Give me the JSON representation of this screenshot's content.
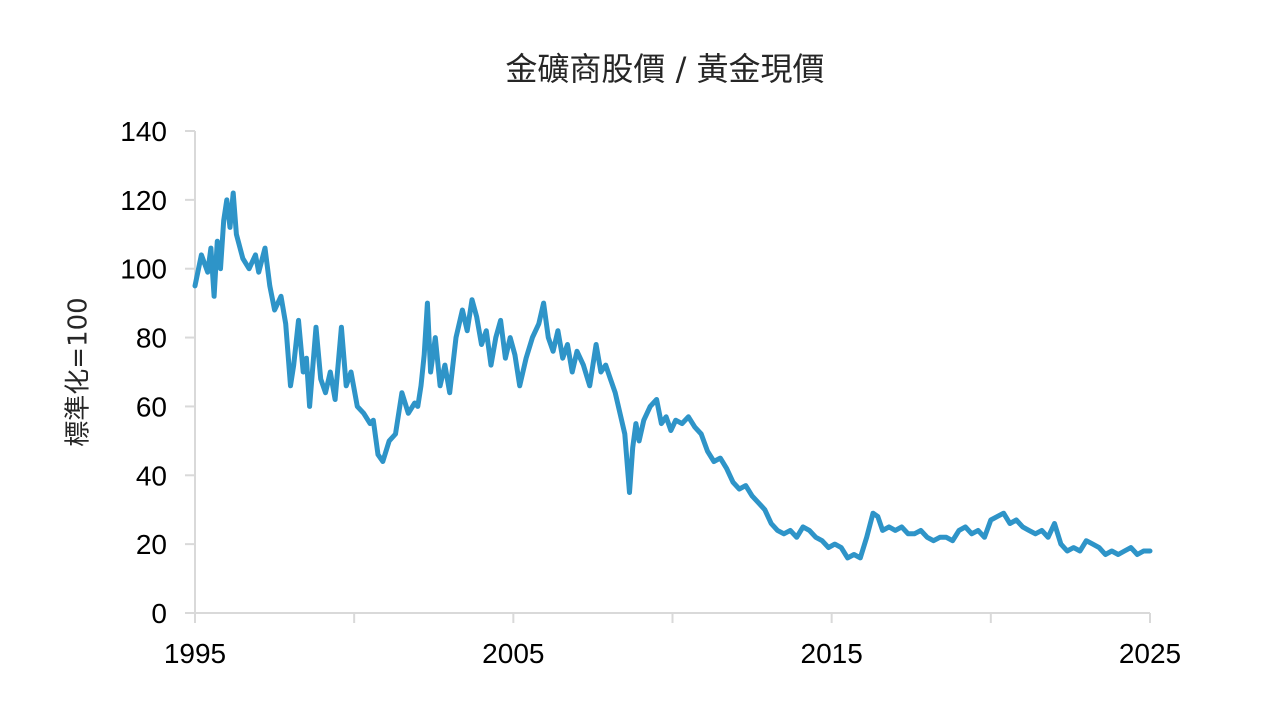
{
  "chart_data": {
    "type": "line",
    "title": "金礦商股價 / 黃金現價",
    "ylabel": "標準化=100",
    "xlabel": "",
    "xlim": [
      1995,
      2025
    ],
    "ylim": [
      0,
      140
    ],
    "y_ticks": [
      0,
      20,
      40,
      60,
      80,
      100,
      120,
      140
    ],
    "x_ticks": [
      1995,
      2000,
      2005,
      2010,
      2015,
      2020,
      2025
    ],
    "x_tick_labels": [
      "1995",
      "",
      "2005",
      "",
      "2015",
      "",
      "2025"
    ],
    "grid": false,
    "legend": "none",
    "color": "#2E94C8",
    "series": [
      {
        "x": [
          1995.0,
          1995.2,
          1995.4,
          1995.5,
          1995.6,
          1995.7,
          1995.8,
          1995.9,
          1996.0,
          1996.1,
          1996.2,
          1996.3,
          1996.5,
          1996.7,
          1996.9,
          1997.0,
          1997.2,
          1997.35,
          1997.5,
          1997.7,
          1997.85,
          1998.0,
          1998.1,
          1998.25,
          1998.4,
          1998.5,
          1998.6,
          1998.8,
          1998.95,
          1999.1,
          1999.25,
          1999.4,
          1999.6,
          1999.75,
          1999.9,
          2000.1,
          2000.3,
          2000.5,
          2000.6,
          2000.75,
          2000.9,
          2001.1,
          2001.3,
          2001.5,
          2001.7,
          2001.9,
          2002.0,
          2002.1,
          2002.2,
          2002.3,
          2002.4,
          2002.55,
          2002.7,
          2002.85,
          2003.0,
          2003.2,
          2003.4,
          2003.55,
          2003.7,
          2003.85,
          2004.0,
          2004.15,
          2004.3,
          2004.45,
          2004.6,
          2004.75,
          2004.9,
          2005.05,
          2005.2,
          2005.4,
          2005.6,
          2005.8,
          2005.95,
          2006.1,
          2006.25,
          2006.4,
          2006.55,
          2006.7,
          2006.85,
          2007.0,
          2007.2,
          2007.4,
          2007.6,
          2007.75,
          2007.9,
          2008.05,
          2008.2,
          2008.35,
          2008.5,
          2008.65,
          2008.75,
          2008.85,
          2008.95,
          2009.1,
          2009.3,
          2009.5,
          2009.65,
          2009.8,
          2009.95,
          2010.1,
          2010.3,
          2010.5,
          2010.7,
          2010.9,
          2011.1,
          2011.3,
          2011.5,
          2011.7,
          2011.9,
          2012.1,
          2012.3,
          2012.5,
          2012.7,
          2012.9,
          2013.1,
          2013.3,
          2013.5,
          2013.7,
          2013.9,
          2014.1,
          2014.3,
          2014.5,
          2014.7,
          2014.9,
          2015.1,
          2015.3,
          2015.5,
          2015.7,
          2015.9,
          2016.1,
          2016.3,
          2016.45,
          2016.6,
          2016.8,
          2017.0,
          2017.2,
          2017.4,
          2017.6,
          2017.8,
          2018.0,
          2018.2,
          2018.4,
          2018.6,
          2018.8,
          2019.0,
          2019.2,
          2019.4,
          2019.6,
          2019.8,
          2020.0,
          2020.2,
          2020.4,
          2020.6,
          2020.8,
          2021.0,
          2021.2,
          2021.4,
          2021.6,
          2021.8,
          2022.0,
          2022.2,
          2022.4,
          2022.6,
          2022.8,
          2023.0,
          2023.2,
          2023.4,
          2023.6,
          2023.8,
          2024.0,
          2024.2,
          2024.4,
          2024.6,
          2024.8,
          2025.0
        ],
        "y": [
          95,
          104,
          99,
          106,
          92,
          108,
          100,
          114,
          120,
          112,
          122,
          110,
          103,
          100,
          104,
          99,
          106,
          95,
          88,
          92,
          84,
          66,
          72,
          85,
          70,
          74,
          60,
          83,
          68,
          64,
          70,
          62,
          83,
          66,
          70,
          60,
          58,
          55,
          56,
          46,
          44,
          50,
          52,
          64,
          58,
          61,
          60,
          66,
          75,
          90,
          70,
          80,
          66,
          72,
          64,
          80,
          88,
          82,
          91,
          86,
          78,
          82,
          72,
          80,
          85,
          74,
          80,
          75,
          66,
          74,
          80,
          84,
          90,
          80,
          76,
          82,
          74,
          78,
          70,
          76,
          72,
          66,
          78,
          70,
          72,
          68,
          64,
          58,
          52,
          35,
          48,
          55,
          50,
          56,
          60,
          62,
          55,
          57,
          53,
          56,
          55,
          57,
          54,
          52,
          47,
          44,
          45,
          42,
          38,
          36,
          37,
          34,
          32,
          30,
          26,
          24,
          23,
          24,
          22,
          25,
          24,
          22,
          21,
          19,
          20,
          19,
          16,
          17,
          16,
          22,
          29,
          28,
          24,
          25,
          24,
          25,
          23,
          23,
          24,
          22,
          21,
          22,
          22,
          21,
          24,
          25,
          23,
          24,
          22,
          27,
          28,
          29,
          26,
          27,
          25,
          24,
          23,
          24,
          22,
          26,
          20,
          18,
          19,
          18,
          21,
          20,
          19,
          17,
          18,
          17,
          18,
          19,
          17,
          18,
          18
        ]
      }
    ]
  }
}
